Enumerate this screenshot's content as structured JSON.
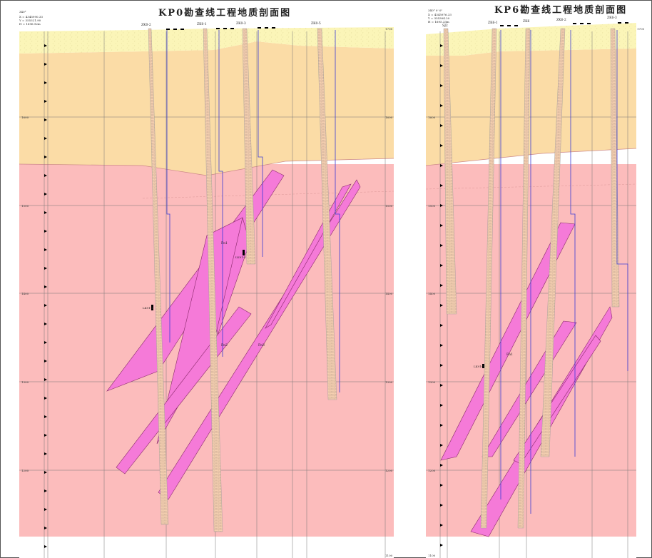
{
  "left": {
    "title": "KP0勘查线工程地质剖面图",
    "azimuth": "340°",
    "coords": [
      "X = 4345990.33",
      "Y = 355321.90",
      "H = 1696.92m"
    ],
    "boreholes": [
      "ZK0-2",
      "ZK0-1",
      "ZK0-3",
      "ZK0-5"
    ],
    "elevations": [
      "1700",
      "1600",
      "1500",
      "1400",
      "1300",
      "1200",
      "1100"
    ],
    "faults": [
      "Fn1",
      "Fn2",
      "Fn3"
    ],
    "samples": [
      "LK91-4",
      "LK91-5"
    ]
  },
  "right": {
    "title": "KP6勘查线工程地质剖面图",
    "azimuth": "340° 0' 0\"",
    "coords": [
      "X = 4345976.33",
      "Y = 355304.20",
      "H = 1695.33m"
    ],
    "boreholes": [
      "SJ2",
      "ZK6-1",
      "ZK6",
      "ZK6-2",
      "ZK6-3"
    ],
    "elevations": [
      "1700",
      "1600",
      "1500",
      "1400",
      "1300",
      "1200",
      "1100"
    ],
    "faults": [
      "Fn1"
    ],
    "samples": [
      "LK91-1"
    ]
  },
  "colors": {
    "topsoil": "#fbf5b8",
    "sand": "#fbdca6",
    "rock": "#fcbcbc",
    "fault": "#f57ad8",
    "water": "#3b3bd6"
  }
}
